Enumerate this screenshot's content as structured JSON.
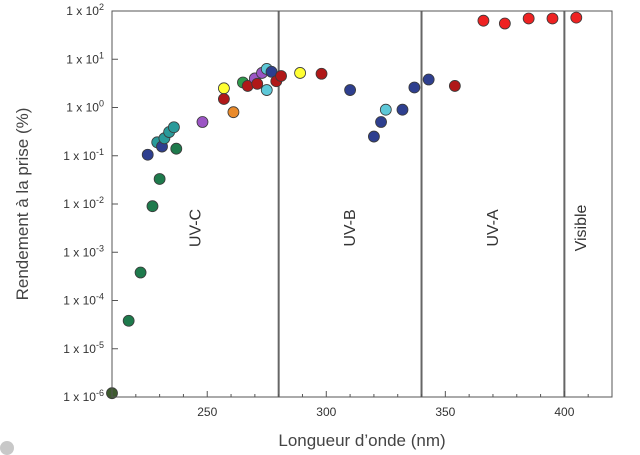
{
  "chart_data": {
    "type": "scatter",
    "xlabel": "Longueur d’onde (nm)",
    "ylabel": "Rendement à la prise (%)",
    "xlim": [
      210,
      420
    ],
    "ylog": true,
    "ylim_exponent": [
      -6,
      2
    ],
    "x_ticks": [
      250,
      300,
      350,
      400
    ],
    "y_ticks": [
      {
        "value": 1e-06,
        "mantissa": "1 x 10",
        "exp": "-6"
      },
      {
        "value": 1e-05,
        "mantissa": "1 x 10",
        "exp": "-5"
      },
      {
        "value": 0.0001,
        "mantissa": "1 x 10",
        "exp": "-4"
      },
      {
        "value": 0.001,
        "mantissa": "1 x 10",
        "exp": "-3"
      },
      {
        "value": 0.01,
        "mantissa": "1 x 10",
        "exp": "-2"
      },
      {
        "value": 0.1,
        "mantissa": "1 x 10",
        "exp": "-1"
      },
      {
        "value": 1,
        "mantissa": "1 x 10",
        "exp": "0"
      },
      {
        "value": 10,
        "mantissa": "1 x 10",
        "exp": "1"
      },
      {
        "value": 100,
        "mantissa": "1 x 10",
        "exp": "2"
      }
    ],
    "region_boundaries": [
      280,
      340,
      400
    ],
    "regions": [
      {
        "label": "UV-C",
        "x": 245
      },
      {
        "label": "UV-B",
        "x": 310
      },
      {
        "label": "UV-A",
        "x": 370
      },
      {
        "label": "Visible",
        "x": 407
      }
    ],
    "grid": false,
    "points": [
      {
        "x": 210,
        "y": 1.2e-06,
        "color": "#3d5a2e"
      },
      {
        "x": 217,
        "y": 3.8e-05,
        "color": "#1e7a4c"
      },
      {
        "x": 222,
        "y": 0.00038,
        "color": "#1e7a4c"
      },
      {
        "x": 225,
        "y": 0.105,
        "color": "#2e3f8f"
      },
      {
        "x": 227,
        "y": 0.009,
        "color": "#1e7a4c"
      },
      {
        "x": 229,
        "y": 0.19,
        "color": "#2a9a9a"
      },
      {
        "x": 230,
        "y": 0.033,
        "color": "#1e7a4c"
      },
      {
        "x": 231,
        "y": 0.155,
        "color": "#2e3f8f"
      },
      {
        "x": 232,
        "y": 0.23,
        "color": "#2a9a9a"
      },
      {
        "x": 234,
        "y": 0.31,
        "color": "#2a9a9a"
      },
      {
        "x": 236,
        "y": 0.39,
        "color": "#2a9a9a"
      },
      {
        "x": 237,
        "y": 0.14,
        "color": "#1e7a4c"
      },
      {
        "x": 248,
        "y": 0.5,
        "color": "#9b55c4"
      },
      {
        "x": 257,
        "y": 2.5,
        "color": "#ffff33"
      },
      {
        "x": 257,
        "y": 1.5,
        "color": "#b01818"
      },
      {
        "x": 261,
        "y": 0.8,
        "color": "#e98a2a"
      },
      {
        "x": 265,
        "y": 3.3,
        "color": "#2e9a4c"
      },
      {
        "x": 267,
        "y": 2.8,
        "color": "#b01818"
      },
      {
        "x": 270,
        "y": 4.0,
        "color": "#9b55c4"
      },
      {
        "x": 271,
        "y": 3.1,
        "color": "#b01818"
      },
      {
        "x": 273,
        "y": 5.2,
        "color": "#9b55c4"
      },
      {
        "x": 275,
        "y": 6.3,
        "color": "#5dc8d8"
      },
      {
        "x": 275,
        "y": 2.3,
        "color": "#5dc8d8"
      },
      {
        "x": 277,
        "y": 5.5,
        "color": "#2e3f8f"
      },
      {
        "x": 279,
        "y": 3.5,
        "color": "#b01818"
      },
      {
        "x": 281,
        "y": 4.5,
        "color": "#b01818"
      },
      {
        "x": 289,
        "y": 5.2,
        "color": "#ffff33"
      },
      {
        "x": 298,
        "y": 5.0,
        "color": "#b01818"
      },
      {
        "x": 310,
        "y": 2.3,
        "color": "#2e3f8f"
      },
      {
        "x": 320,
        "y": 0.25,
        "color": "#2e3f8f"
      },
      {
        "x": 323,
        "y": 0.5,
        "color": "#2e3f8f"
      },
      {
        "x": 325,
        "y": 0.9,
        "color": "#5dc8d8"
      },
      {
        "x": 332,
        "y": 0.9,
        "color": "#2e3f8f"
      },
      {
        "x": 337,
        "y": 2.6,
        "color": "#2e3f8f"
      },
      {
        "x": 343,
        "y": 3.8,
        "color": "#2e3f8f"
      },
      {
        "x": 354,
        "y": 2.8,
        "color": "#b01818"
      },
      {
        "x": 366,
        "y": 63,
        "color": "#ee2222"
      },
      {
        "x": 375,
        "y": 55,
        "color": "#ee2222"
      },
      {
        "x": 385,
        "y": 70,
        "color": "#ee2222"
      },
      {
        "x": 395,
        "y": 70,
        "color": "#ee2222"
      },
      {
        "x": 405,
        "y": 73,
        "color": "#ee2222"
      }
    ]
  }
}
